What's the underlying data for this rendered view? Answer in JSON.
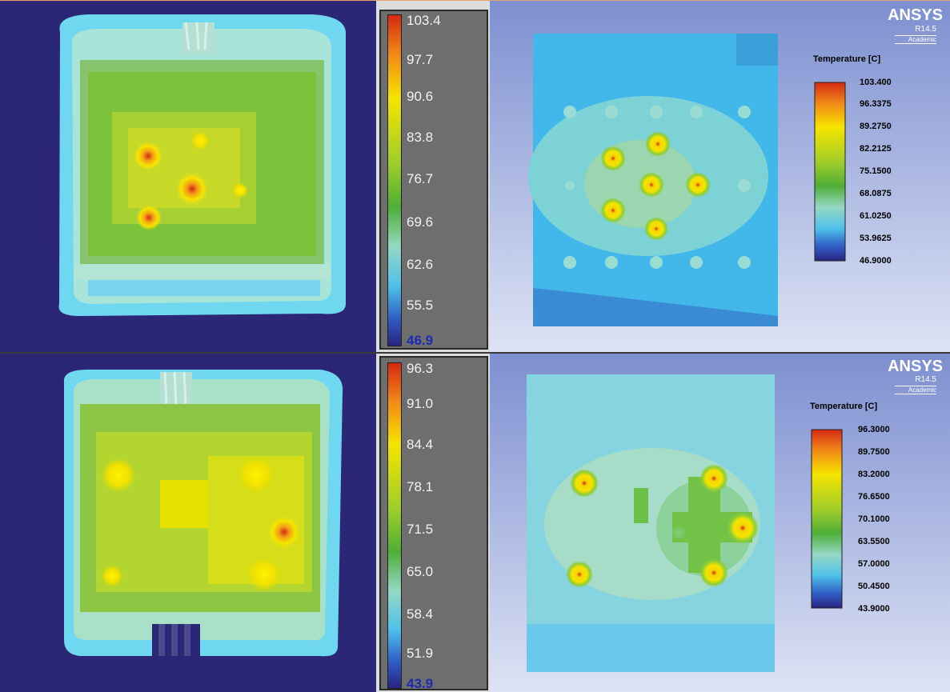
{
  "top_scale": {
    "ticks": [
      "103.4",
      "97.7",
      "90.6",
      "83.8",
      "76.7",
      "69.6",
      "62.6",
      "55.5",
      "46.9"
    ]
  },
  "bottom_scale": {
    "ticks": [
      "96.3",
      "91.0",
      "84.4",
      "78.1",
      "71.5",
      "65.0",
      "58.4",
      "51.9",
      "43.9"
    ]
  },
  "top_ansys": {
    "brand": "ANSYS",
    "version": "R14.5",
    "edition": "Academic",
    "legend_title": "Temperature [C]",
    "legend_values": [
      "103.400",
      "96.3375",
      "89.2750",
      "82.2125",
      "75.1500",
      "68.0875",
      "61.0250",
      "53.9625",
      "46.9000"
    ]
  },
  "bottom_ansys": {
    "brand": "ANSYS",
    "version": "R14.5",
    "edition": "Academic",
    "legend_title": "Temperature [C]",
    "legend_values": [
      "96.3000",
      "89.7500",
      "83.2000",
      "76.6500",
      "70.1000",
      "63.5500",
      "57.0000",
      "50.4500",
      "43.9000"
    ]
  },
  "colors": {
    "ir_background": "#2c2676",
    "sim_background": "#8fa0d8",
    "hot": "#d42a14",
    "warm": "#f5e400",
    "mid": "#6cba1e",
    "cool": "#4fc0ea",
    "cold": "#2b2480"
  }
}
